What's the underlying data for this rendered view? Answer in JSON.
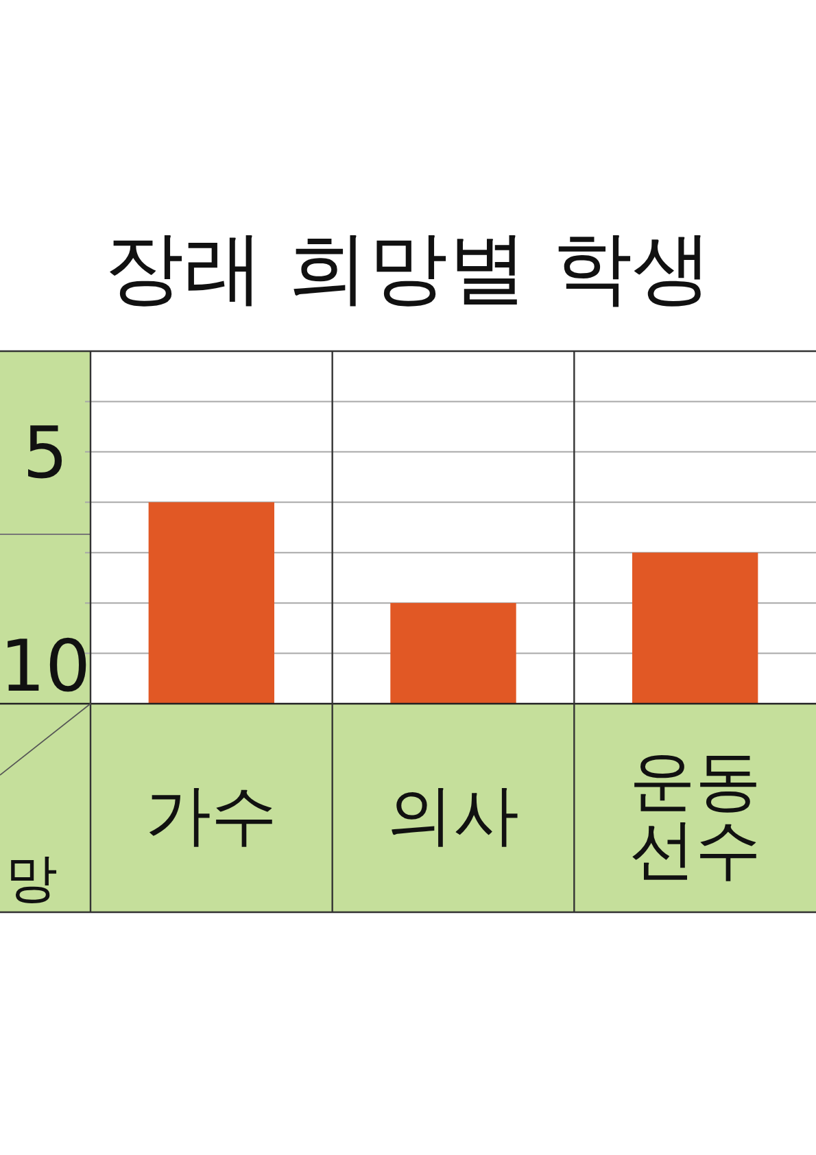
{
  "chart_data": {
    "type": "bar",
    "title": "장래 희망별 학생",
    "categories": [
      "가수",
      "의사",
      "운동 선수"
    ],
    "values": [
      4,
      2,
      3
    ],
    "color": "#e15825",
    "xlabel": "망",
    "ylim": [
      0,
      7
    ],
    "yticks": [
      {
        "value": 1,
        "label": null
      },
      {
        "value": 2,
        "label": null
      },
      {
        "value": 3,
        "label": null
      },
      {
        "value": 4,
        "label": null
      },
      5,
      {
        "value": 6,
        "label": null
      }
    ],
    "annotations": [
      "10"
    ],
    "grid": "y"
  }
}
